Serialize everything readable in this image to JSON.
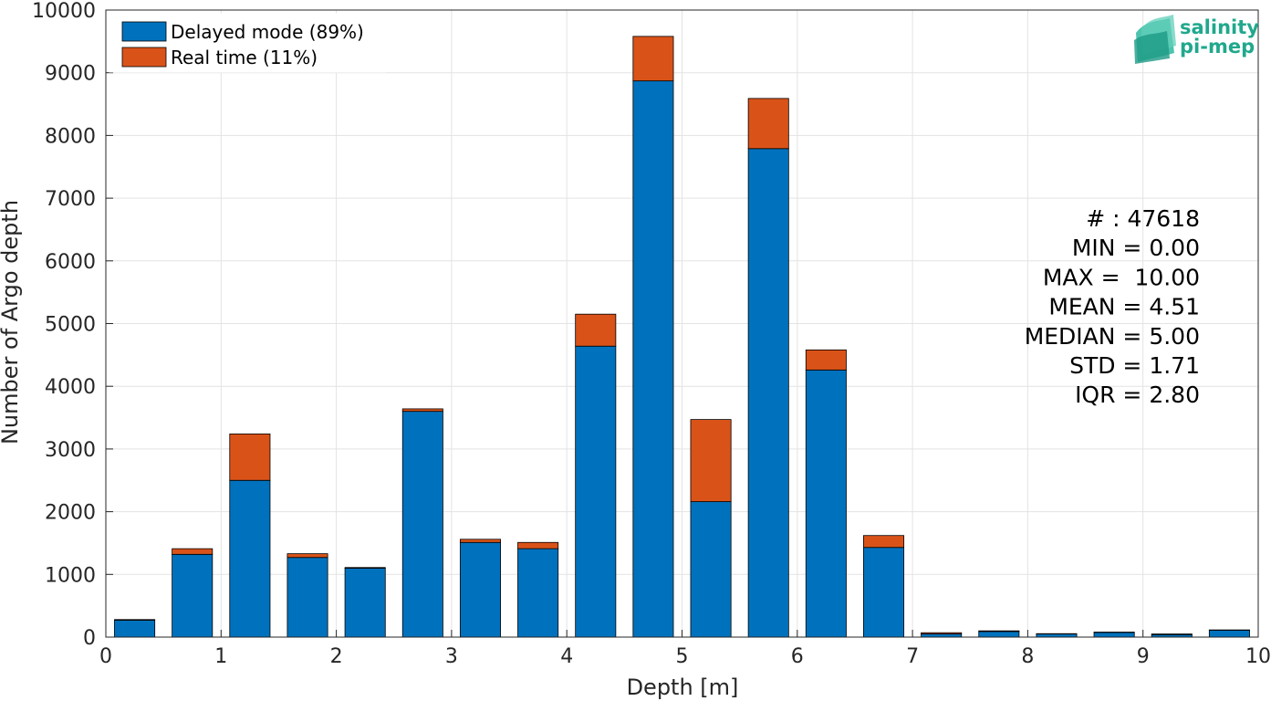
{
  "chart_data": {
    "type": "bar",
    "stacked": true,
    "xlabel": "Depth [m]",
    "ylabel": "Number of Argo depth",
    "xlim": [
      0,
      10
    ],
    "ylim": [
      0,
      10000
    ],
    "xticks": [
      "0",
      "1",
      "2",
      "3",
      "4",
      "5",
      "6",
      "7",
      "8",
      "9",
      "10"
    ],
    "yticks": [
      "0",
      "1000",
      "2000",
      "3000",
      "4000",
      "5000",
      "6000",
      "7000",
      "8000",
      "9000",
      "10000"
    ],
    "grid": true,
    "legend_position": "top-left",
    "bin_centers": [
      0.25,
      0.75,
      1.25,
      1.75,
      2.25,
      2.75,
      3.25,
      3.75,
      4.25,
      4.75,
      5.25,
      5.75,
      6.25,
      6.75,
      7.25,
      7.75,
      8.25,
      8.75,
      9.25,
      9.75
    ],
    "bar_width": 0.35,
    "series": [
      {
        "name": "Delayed mode (89%)",
        "color": "#0072bd",
        "values": [
          270,
          1320,
          2500,
          1270,
          1100,
          3600,
          1510,
          1410,
          4640,
          8870,
          2160,
          7790,
          4260,
          1430,
          50,
          90,
          50,
          75,
          40,
          110
        ]
      },
      {
        "name": "Real time (11%)",
        "color": "#d95319",
        "values": [
          10,
          90,
          740,
          60,
          10,
          40,
          50,
          100,
          510,
          710,
          1310,
          800,
          320,
          190,
          20,
          10,
          5,
          5,
          10,
          5
        ]
      }
    ],
    "stats": [
      "# : 47618",
      "MIN = 0.00",
      "MAX =  10.00",
      "MEAN = 4.51",
      "MEDIAN = 5.00",
      "STD = 1.71",
      "IQR = 2.80"
    ]
  },
  "logo": {
    "line1": "salinity",
    "line2": "pi-mep"
  }
}
